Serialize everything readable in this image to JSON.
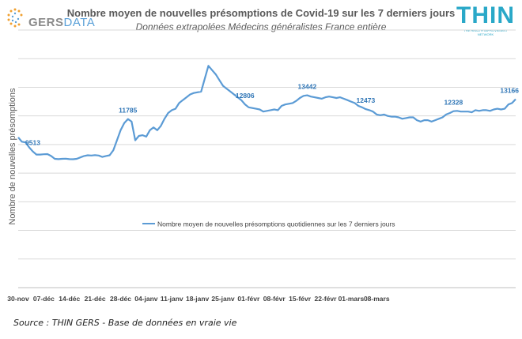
{
  "header": {
    "title": "Nombre moyen de nouvelles présomptions de Covid-19 sur les 7 derniers jours",
    "subtitle": "Données extrapolées Médecins généralistes France entière",
    "logo_left_a": "GERS",
    "logo_left_b": "DATA",
    "logo_right": "THIN",
    "logo_right_tagline": "The Health Improvement Network"
  },
  "footer": {
    "source": "Source : THIN GERS - Base de données en vraie vie"
  },
  "colors": {
    "line": "#5b9bd5",
    "label": "#2e75b6",
    "grid": "#d9d9d9",
    "title": "#595959"
  },
  "chart_data": {
    "type": "line",
    "title": "Nombre moyen de nouvelles présomptions de Covid-19 sur les 7 derniers jours",
    "subtitle": "Données extrapolées Médecins généralistes France entière",
    "xlabel": "",
    "ylabel": "Nombre de nouvelles présomptions",
    "ylim": [
      0,
      18000
    ],
    "grid": true,
    "legend_position": "center",
    "x_ticks": [
      "30-nov",
      "07-déc",
      "14-déc",
      "21-déc",
      "28-déc",
      "04-janv",
      "11-janv",
      "18-janv",
      "25-janv",
      "01-févr",
      "08-févr",
      "15-févr",
      "22-févr",
      "01-mars",
      "08-mars"
    ],
    "series": [
      {
        "name": "Nombre moyen de nouvelles présomptions quotidiennes sur les 7 derniers jours",
        "values": [
          10500,
          10200,
          10150,
          9800,
          9513,
          9300,
          9300,
          9320,
          9330,
          9200,
          9000,
          8980,
          9000,
          9010,
          8980,
          8970,
          9000,
          9100,
          9200,
          9250,
          9230,
          9260,
          9230,
          9130,
          9200,
          9250,
          9600,
          10300,
          11000,
          11500,
          11785,
          11600,
          10300,
          10600,
          10650,
          10550,
          11000,
          11200,
          11000,
          11300,
          11800,
          12200,
          12400,
          12500,
          12900,
          13100,
          13300,
          13500,
          13600,
          13650,
          13700,
          14600,
          15500,
          15200,
          14900,
          14500,
          14100,
          13900,
          13700,
          13500,
          13300,
          13100,
          12806,
          12600,
          12550,
          12500,
          12450,
          12300,
          12350,
          12400,
          12450,
          12400,
          12700,
          12800,
          12850,
          12900,
          13050,
          13250,
          13400,
          13442,
          13350,
          13300,
          13250,
          13200,
          13300,
          13350,
          13300,
          13250,
          13300,
          13200,
          13100,
          13000,
          12900,
          12700,
          12600,
          12473,
          12400,
          12300,
          12100,
          12050,
          12100,
          12000,
          11950,
          11950,
          11900,
          11800,
          11850,
          11900,
          11900,
          11700,
          11600,
          11700,
          11700,
          11600,
          11700,
          11800,
          11900,
          12100,
          12200,
          12328,
          12350,
          12300,
          12300,
          12300,
          12250,
          12400,
          12350,
          12400,
          12400,
          12350,
          12450,
          12500,
          12450,
          12500,
          12800,
          12900,
          13166
        ]
      }
    ],
    "data_labels": [
      {
        "index": 4,
        "value": "9513"
      },
      {
        "index": 30,
        "value": "11785"
      },
      {
        "index": 62,
        "value": "12806"
      },
      {
        "index": 79,
        "value": "13442"
      },
      {
        "index": 95,
        "value": "12473"
      },
      {
        "index": 119,
        "value": "12328"
      },
      {
        "index": 136,
        "value": "13166"
      }
    ]
  }
}
